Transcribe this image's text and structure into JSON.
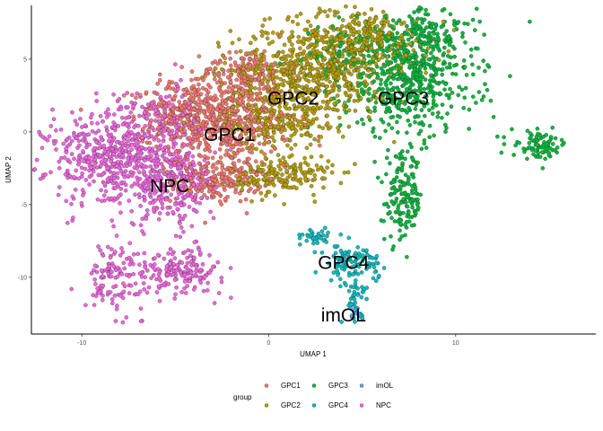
{
  "chart_data": {
    "type": "scatter",
    "xlabel": "UMAP 1",
    "ylabel": "UMAP 2",
    "xlim": [
      -12.7,
      17.5
    ],
    "ylim": [
      -13.9,
      8.7
    ],
    "x_ticks": [
      -10,
      0,
      10
    ],
    "y_ticks": [
      -10,
      -5,
      0,
      5
    ],
    "grid": false,
    "legend": {
      "title": "group",
      "placement": "bottom",
      "entries": [
        "GPC1",
        "GPC2",
        "GPC3",
        "GPC4",
        "imOL",
        "NPC"
      ]
    },
    "colors": {
      "GPC1": "#F8766D",
      "GPC2": "#B79F00",
      "GPC3": "#00BA38",
      "GPC4": "#00BFC4",
      "imOL": "#619CFF",
      "NPC": "#F564E3"
    },
    "annotations": [
      {
        "text": "GPC1",
        "x": -2.1,
        "y": -0.2
      },
      {
        "text": "GPC2",
        "x": 1.3,
        "y": 2.3
      },
      {
        "text": "GPC3",
        "x": 7.2,
        "y": 2.3
      },
      {
        "text": "NPC",
        "x": -5.3,
        "y": -3.7
      },
      {
        "text": "GPC4",
        "x": 4.0,
        "y": -9.0
      },
      {
        "text": "imOL",
        "x": 4.0,
        "y": -12.6
      }
    ],
    "series": [
      {
        "name": "GPC1",
        "clusters": [
          {
            "cx": -2.5,
            "cy": 0.8,
            "sx": 2.2,
            "sy": 1.8,
            "n": 520
          },
          {
            "cx": -2.8,
            "cy": -3.3,
            "sx": 1.4,
            "sy": 0.9,
            "n": 200
          },
          {
            "cx": -4.5,
            "cy": 1.5,
            "sx": 1.5,
            "sy": 1.2,
            "n": 140
          },
          {
            "cx": -1.2,
            "cy": 4.3,
            "sx": 1.3,
            "sy": 0.8,
            "n": 120
          }
        ]
      },
      {
        "name": "GPC2",
        "clusters": [
          {
            "cx": 2.3,
            "cy": 4.2,
            "sx": 2.5,
            "sy": 2.0,
            "n": 620
          },
          {
            "cx": 0.3,
            "cy": 1.0,
            "sx": 1.6,
            "sy": 1.3,
            "n": 220
          },
          {
            "cx": 0.7,
            "cy": -3.0,
            "sx": 1.6,
            "sy": 0.8,
            "n": 190
          },
          {
            "cx": 5.2,
            "cy": 6.4,
            "sx": 2.0,
            "sy": 1.2,
            "n": 240
          }
        ]
      },
      {
        "name": "GPC3",
        "clusters": [
          {
            "cx": 7.5,
            "cy": 3.5,
            "sx": 2.1,
            "sy": 2.2,
            "n": 500
          },
          {
            "cx": 8.3,
            "cy": 6.5,
            "sx": 1.6,
            "sy": 1.2,
            "n": 160
          },
          {
            "cx": 7.2,
            "cy": -4.6,
            "sx": 0.6,
            "sy": 1.8,
            "n": 160
          },
          {
            "cx": 14.5,
            "cy": -0.9,
            "sx": 0.9,
            "sy": 0.55,
            "n": 80
          },
          {
            "cx": 4.0,
            "cy": 5.5,
            "sx": 1.2,
            "sy": 1.0,
            "n": 90
          }
        ]
      },
      {
        "name": "GPC4",
        "clusters": [
          {
            "cx": 4.5,
            "cy": -9.1,
            "sx": 0.85,
            "sy": 0.8,
            "n": 110
          },
          {
            "cx": 2.6,
            "cy": -7.2,
            "sx": 0.45,
            "sy": 0.4,
            "n": 35
          },
          {
            "cx": 4.6,
            "cy": -11.6,
            "sx": 0.35,
            "sy": 0.7,
            "n": 35
          }
        ]
      },
      {
        "name": "imOL",
        "clusters": [
          {
            "cx": 4.3,
            "cy": -12.2,
            "sx": 0.3,
            "sy": 0.3,
            "n": 6
          }
        ]
      },
      {
        "name": "NPC",
        "clusters": [
          {
            "cx": -8.0,
            "cy": -1.8,
            "sx": 2.3,
            "sy": 1.9,
            "n": 560
          },
          {
            "cx": -5.2,
            "cy": -3.8,
            "sx": 1.4,
            "sy": 1.6,
            "n": 220
          },
          {
            "cx": -4.8,
            "cy": -9.5,
            "sx": 1.4,
            "sy": 0.9,
            "n": 180
          },
          {
            "cx": -8.3,
            "cy": -10.0,
            "sx": 0.9,
            "sy": 1.3,
            "n": 110
          },
          {
            "cx": -5.8,
            "cy": 1.0,
            "sx": 1.3,
            "sy": 1.3,
            "n": 130
          }
        ]
      }
    ]
  }
}
